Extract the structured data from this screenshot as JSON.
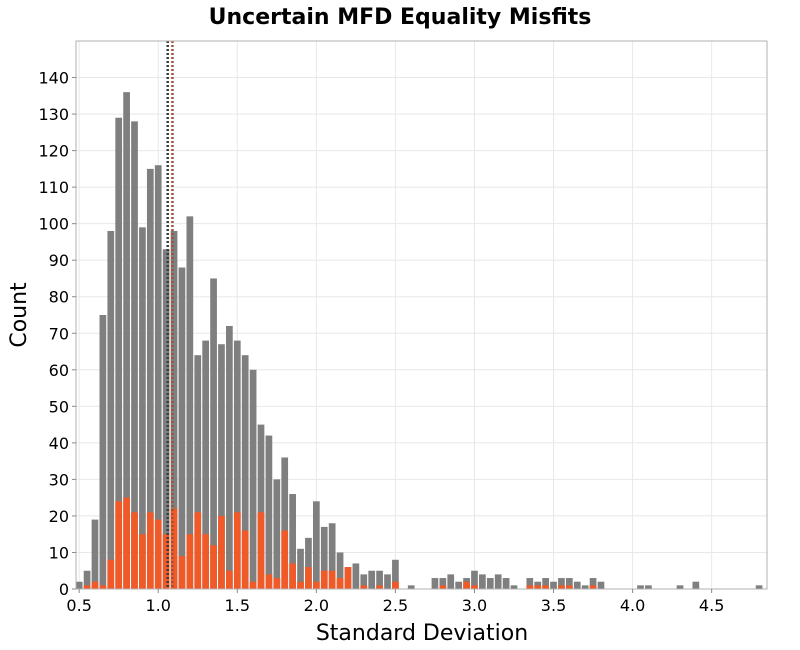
{
  "chart_data": {
    "type": "bar",
    "title": "Uncertain MFD Equality Misfits",
    "xlabel": "Standard Deviation",
    "ylabel": "Count",
    "xlim": [
      0.48,
      4.85
    ],
    "ylim": [
      0,
      150
    ],
    "bin_width": 0.05,
    "grid": true,
    "x_ticks": [
      "0.5",
      "1.0",
      "1.5",
      "2.0",
      "2.5",
      "3.0",
      "3.5",
      "4.0",
      "4.5"
    ],
    "y_ticks": [
      "0",
      "10",
      "20",
      "30",
      "40",
      "50",
      "60",
      "70",
      "80",
      "90",
      "100",
      "110",
      "120",
      "130",
      "140"
    ],
    "series": [
      {
        "color": "#7f7f7f",
        "bins": [
          {
            "x": 0.5,
            "y": 2
          },
          {
            "x": 0.55,
            "y": 5
          },
          {
            "x": 0.6,
            "y": 19
          },
          {
            "x": 0.65,
            "y": 75
          },
          {
            "x": 0.7,
            "y": 98
          },
          {
            "x": 0.75,
            "y": 129
          },
          {
            "x": 0.8,
            "y": 136
          },
          {
            "x": 0.85,
            "y": 128
          },
          {
            "x": 0.9,
            "y": 99
          },
          {
            "x": 0.95,
            "y": 115
          },
          {
            "x": 1.0,
            "y": 116
          },
          {
            "x": 1.05,
            "y": 93
          },
          {
            "x": 1.1,
            "y": 98
          },
          {
            "x": 1.15,
            "y": 88
          },
          {
            "x": 1.2,
            "y": 102
          },
          {
            "x": 1.25,
            "y": 64
          },
          {
            "x": 1.3,
            "y": 68
          },
          {
            "x": 1.35,
            "y": 85
          },
          {
            "x": 1.4,
            "y": 67
          },
          {
            "x": 1.45,
            "y": 72
          },
          {
            "x": 1.5,
            "y": 68
          },
          {
            "x": 1.55,
            "y": 64
          },
          {
            "x": 1.6,
            "y": 60
          },
          {
            "x": 1.65,
            "y": 45
          },
          {
            "x": 1.7,
            "y": 42
          },
          {
            "x": 1.75,
            "y": 30
          },
          {
            "x": 1.8,
            "y": 36
          },
          {
            "x": 1.85,
            "y": 26
          },
          {
            "x": 1.9,
            "y": 11
          },
          {
            "x": 1.95,
            "y": 14
          },
          {
            "x": 2.0,
            "y": 24
          },
          {
            "x": 2.05,
            "y": 17
          },
          {
            "x": 2.1,
            "y": 18
          },
          {
            "x": 2.15,
            "y": 10
          },
          {
            "x": 2.2,
            "y": 6
          },
          {
            "x": 2.25,
            "y": 7
          },
          {
            "x": 2.3,
            "y": 4
          },
          {
            "x": 2.35,
            "y": 5
          },
          {
            "x": 2.4,
            "y": 5
          },
          {
            "x": 2.45,
            "y": 4
          },
          {
            "x": 2.5,
            "y": 8
          },
          {
            "x": 2.55,
            "y": 0
          },
          {
            "x": 2.6,
            "y": 1
          },
          {
            "x": 2.65,
            "y": 0
          },
          {
            "x": 2.7,
            "y": 0
          },
          {
            "x": 2.75,
            "y": 3
          },
          {
            "x": 2.8,
            "y": 3
          },
          {
            "x": 2.85,
            "y": 4
          },
          {
            "x": 2.9,
            "y": 2
          },
          {
            "x": 2.95,
            "y": 3
          },
          {
            "x": 3.0,
            "y": 5
          },
          {
            "x": 3.05,
            "y": 4
          },
          {
            "x": 3.1,
            "y": 3
          },
          {
            "x": 3.15,
            "y": 4
          },
          {
            "x": 3.2,
            "y": 3
          },
          {
            "x": 3.25,
            "y": 1
          },
          {
            "x": 3.3,
            "y": 0
          },
          {
            "x": 3.35,
            "y": 3
          },
          {
            "x": 3.4,
            "y": 2
          },
          {
            "x": 3.45,
            "y": 3
          },
          {
            "x": 3.5,
            "y": 2
          },
          {
            "x": 3.55,
            "y": 3
          },
          {
            "x": 3.6,
            "y": 3
          },
          {
            "x": 3.65,
            "y": 2
          },
          {
            "x": 3.7,
            "y": 1
          },
          {
            "x": 3.75,
            "y": 3
          },
          {
            "x": 3.8,
            "y": 2
          },
          {
            "x": 3.85,
            "y": 0
          },
          {
            "x": 3.9,
            "y": 0
          },
          {
            "x": 3.95,
            "y": 0
          },
          {
            "x": 4.0,
            "y": 0
          },
          {
            "x": 4.05,
            "y": 1
          },
          {
            "x": 4.1,
            "y": 1
          },
          {
            "x": 4.15,
            "y": 0
          },
          {
            "x": 4.2,
            "y": 0
          },
          {
            "x": 4.25,
            "y": 0
          },
          {
            "x": 4.3,
            "y": 1
          },
          {
            "x": 4.35,
            "y": 0
          },
          {
            "x": 4.4,
            "y": 2
          },
          {
            "x": 4.45,
            "y": 0
          },
          {
            "x": 4.5,
            "y": 0
          },
          {
            "x": 4.55,
            "y": 0
          },
          {
            "x": 4.6,
            "y": 0
          },
          {
            "x": 4.65,
            "y": 0
          },
          {
            "x": 4.7,
            "y": 0
          },
          {
            "x": 4.75,
            "y": 0
          },
          {
            "x": 4.8,
            "y": 1
          }
        ]
      },
      {
        "color": "#f05a28",
        "bins": [
          {
            "x": 0.5,
            "y": 0
          },
          {
            "x": 0.55,
            "y": 1
          },
          {
            "x": 0.6,
            "y": 2
          },
          {
            "x": 0.65,
            "y": 1
          },
          {
            "x": 0.7,
            "y": 8
          },
          {
            "x": 0.75,
            "y": 24
          },
          {
            "x": 0.8,
            "y": 25
          },
          {
            "x": 0.85,
            "y": 21
          },
          {
            "x": 0.9,
            "y": 15
          },
          {
            "x": 0.95,
            "y": 21
          },
          {
            "x": 1.0,
            "y": 19
          },
          {
            "x": 1.05,
            "y": 15
          },
          {
            "x": 1.1,
            "y": 22
          },
          {
            "x": 1.15,
            "y": 9
          },
          {
            "x": 1.2,
            "y": 15
          },
          {
            "x": 1.25,
            "y": 21
          },
          {
            "x": 1.3,
            "y": 15
          },
          {
            "x": 1.35,
            "y": 12
          },
          {
            "x": 1.4,
            "y": 20
          },
          {
            "x": 1.45,
            "y": 5
          },
          {
            "x": 1.5,
            "y": 21
          },
          {
            "x": 1.55,
            "y": 16
          },
          {
            "x": 1.6,
            "y": 2
          },
          {
            "x": 1.65,
            "y": 21
          },
          {
            "x": 1.7,
            "y": 4
          },
          {
            "x": 1.75,
            "y": 3
          },
          {
            "x": 1.8,
            "y": 16
          },
          {
            "x": 1.85,
            "y": 7
          },
          {
            "x": 1.9,
            "y": 2
          },
          {
            "x": 1.95,
            "y": 6
          },
          {
            "x": 2.0,
            "y": 2
          },
          {
            "x": 2.05,
            "y": 5
          },
          {
            "x": 2.1,
            "y": 5
          },
          {
            "x": 2.15,
            "y": 3
          },
          {
            "x": 2.2,
            "y": 6
          },
          {
            "x": 2.25,
            "y": 0
          },
          {
            "x": 2.3,
            "y": 1
          },
          {
            "x": 2.35,
            "y": 0
          },
          {
            "x": 2.4,
            "y": 1
          },
          {
            "x": 2.45,
            "y": 0
          },
          {
            "x": 2.5,
            "y": 2
          },
          {
            "x": 2.55,
            "y": 0
          },
          {
            "x": 2.6,
            "y": 0
          },
          {
            "x": 2.65,
            "y": 0
          },
          {
            "x": 2.7,
            "y": 0
          },
          {
            "x": 2.75,
            "y": 0
          },
          {
            "x": 2.8,
            "y": 1
          },
          {
            "x": 2.85,
            "y": 0
          },
          {
            "x": 2.9,
            "y": 0
          },
          {
            "x": 2.95,
            "y": 2
          },
          {
            "x": 3.0,
            "y": 1
          },
          {
            "x": 3.05,
            "y": 0
          },
          {
            "x": 3.1,
            "y": 0
          },
          {
            "x": 3.15,
            "y": 0
          },
          {
            "x": 3.2,
            "y": 0
          },
          {
            "x": 3.25,
            "y": 0
          },
          {
            "x": 3.3,
            "y": 0
          },
          {
            "x": 3.35,
            "y": 1
          },
          {
            "x": 3.4,
            "y": 1
          },
          {
            "x": 3.45,
            "y": 1
          },
          {
            "x": 3.5,
            "y": 0
          },
          {
            "x": 3.55,
            "y": 1
          },
          {
            "x": 3.6,
            "y": 1
          },
          {
            "x": 3.65,
            "y": 0
          },
          {
            "x": 3.7,
            "y": 0
          },
          {
            "x": 3.75,
            "y": 1
          },
          {
            "x": 3.8,
            "y": 0
          }
        ]
      }
    ],
    "reference_lines": [
      {
        "x": 1.06,
        "color": "#3a3a3a",
        "style": "dotted"
      },
      {
        "x": 1.09,
        "color": "#a0522d",
        "style": "dotted"
      }
    ]
  }
}
